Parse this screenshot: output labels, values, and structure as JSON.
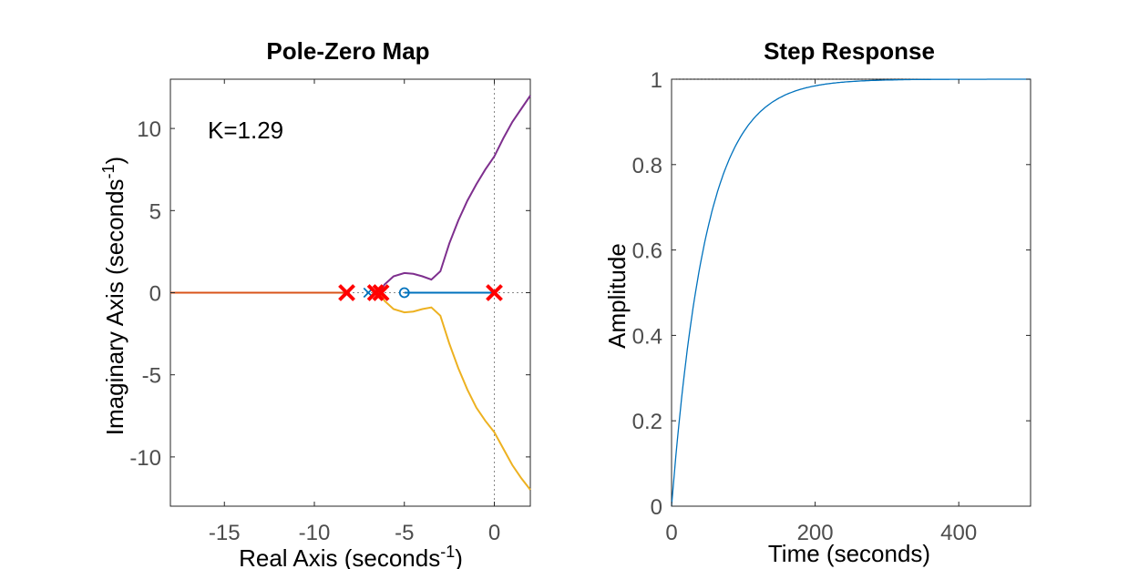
{
  "chart_data": [
    {
      "type": "scatter",
      "title": "Pole-Zero Map",
      "xlabel": "Real Axis (seconds",
      "xlabel_sup": "-1",
      "xlabel_close": ")",
      "ylabel": "Imaginary Axis (seconds",
      "ylabel_sup": "-1",
      "ylabel_close": ")",
      "annotation": "K=1.29",
      "xlim": [
        -18,
        2
      ],
      "ylim": [
        -13,
        13
      ],
      "xticks": [
        -15,
        -10,
        -5,
        0
      ],
      "xtick_labels": [
        "-15",
        "-10",
        "-5",
        "0"
      ],
      "yticks": [
        10,
        5,
        0,
        -5,
        -10
      ],
      "ytick_labels": [
        "10",
        "5",
        "0",
        "-5",
        "-10"
      ],
      "grid": false,
      "series": [
        {
          "kind": "line",
          "color": "#D95319",
          "points": [
            [
              -18,
              0
            ],
            [
              -8.2,
              0
            ]
          ]
        },
        {
          "kind": "line",
          "color": "#0072BD",
          "points": [
            [
              -5,
              0
            ],
            [
              0,
              0
            ]
          ]
        },
        {
          "kind": "line",
          "color": "#7E2F8E",
          "points": [
            [
              -6.4,
              0
            ],
            [
              -6.1,
              0.5
            ],
            [
              -5.6,
              1.0
            ],
            [
              -5,
              1.2
            ],
            [
              -4.5,
              1.15
            ],
            [
              -4.0,
              1.0
            ],
            [
              -3.5,
              0.8
            ],
            [
              -3.0,
              1.3
            ],
            [
              -2.5,
              3.0
            ],
            [
              -2.0,
              4.4
            ],
            [
              -1.5,
              5.6
            ],
            [
              -1.0,
              6.6
            ],
            [
              -0.5,
              7.5
            ],
            [
              0,
              8.3
            ],
            [
              0.5,
              9.4
            ],
            [
              1.0,
              10.4
            ],
            [
              1.5,
              11.2
            ],
            [
              2,
              12.0
            ]
          ]
        },
        {
          "kind": "line",
          "color": "#EDB120",
          "points": [
            [
              -6.4,
              0
            ],
            [
              -6.1,
              -0.5
            ],
            [
              -5.6,
              -1.0
            ],
            [
              -5,
              -1.2
            ],
            [
              -4.5,
              -1.15
            ],
            [
              -4.0,
              -1.0
            ],
            [
              -3.5,
              -0.9
            ],
            [
              -3.0,
              -1.4
            ],
            [
              -2.5,
              -3.1
            ],
            [
              -2.0,
              -4.6
            ],
            [
              -1.5,
              -5.9
            ],
            [
              -1.0,
              -7.0
            ],
            [
              -0.5,
              -7.8
            ],
            [
              0,
              -8.5
            ],
            [
              0.5,
              -9.5
            ],
            [
              1.0,
              -10.5
            ],
            [
              1.5,
              -11.3
            ],
            [
              2,
              -12.0
            ]
          ]
        }
      ],
      "poles_open": {
        "color": "#0072BD",
        "points": [
          [
            -7.0,
            0
          ]
        ]
      },
      "zeros": {
        "color": "#0072BD",
        "points": [
          [
            -5,
            0
          ]
        ]
      },
      "poles_closed": {
        "color": "#FF0000",
        "points": [
          [
            -8.2,
            0
          ],
          [
            -6.6,
            0
          ],
          [
            -6.3,
            0
          ],
          [
            0,
            0
          ]
        ]
      },
      "zero_line_color": "#888888"
    },
    {
      "type": "line",
      "title": "Step Response",
      "xlabel": "Time (seconds)",
      "ylabel": "Amplitude",
      "xlim": [
        0,
        500
      ],
      "ylim": [
        0,
        1
      ],
      "xticks": [
        0,
        200,
        400
      ],
      "xtick_labels": [
        "0",
        "200",
        "400"
      ],
      "yticks": [
        0,
        0.2,
        0.4,
        0.6,
        0.8,
        1
      ],
      "ytick_labels": [
        "0",
        "0.2",
        "0.4",
        "0.6",
        "0.8",
        "1"
      ],
      "grid": false,
      "series": [
        {
          "color": "#0072BD",
          "time_constant": 48,
          "t_end": 500
        }
      ],
      "steady_state": {
        "value": 1,
        "color": "#000000"
      }
    }
  ]
}
